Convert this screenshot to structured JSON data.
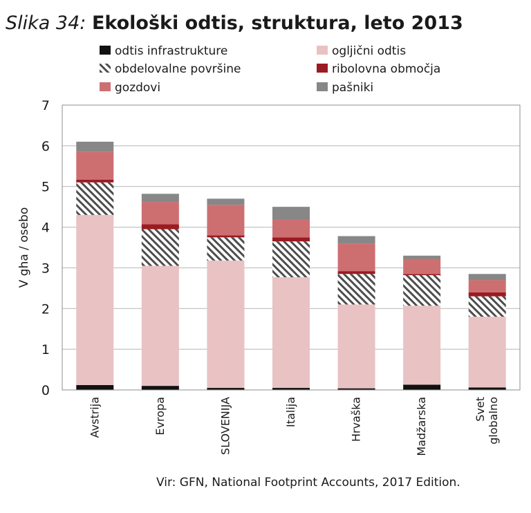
{
  "title_label": "Slika 34:",
  "title_text": "Ekološki odtis, struktura, leto 2013",
  "source": "Vir: GFN, National Footprint Accounts, 2017 Edition.",
  "colors": {
    "odtis_infrastrukture": "#111111",
    "ogljicni_odtis": "#e9c2c3",
    "obdelovalne_povrsine": "#4d4d4d",
    "ribolovna_obmocja": "#9b1b22",
    "gozdovi": "#cd6f71",
    "pasniki": "#878787"
  },
  "chart_data": {
    "type": "bar",
    "stacked": true,
    "title": "Ekološki odtis, struktura, leto 2013",
    "ylabel": "V gha / osebo",
    "xlabel": "",
    "ylim": [
      0,
      7
    ],
    "yticks": [
      0,
      1,
      2,
      3,
      4,
      5,
      6,
      7
    ],
    "grid": true,
    "categories": [
      [
        "Avstrija"
      ],
      [
        "Evropa"
      ],
      [
        "SLOVENIJA"
      ],
      [
        "Italija"
      ],
      [
        "Hrvaška"
      ],
      [
        "Madžarska"
      ],
      [
        "Svet",
        "globalno"
      ]
    ],
    "series": [
      {
        "key": "odtis_infrastrukture",
        "name": "odtis infrastrukture",
        "pattern": "solid",
        "values": [
          0.12,
          0.1,
          0.05,
          0.05,
          0.04,
          0.13,
          0.06
        ]
      },
      {
        "key": "ogljicni_odtis",
        "name": "ogljični odtis",
        "pattern": "solid",
        "values": [
          4.18,
          2.95,
          3.13,
          2.72,
          2.06,
          1.94,
          1.74
        ]
      },
      {
        "key": "obdelovalne_povrsine",
        "name": "obdelovalne površine",
        "pattern": "hatch",
        "values": [
          0.8,
          0.9,
          0.57,
          0.88,
          0.75,
          0.75,
          0.5
        ]
      },
      {
        "key": "ribolovna_obmocja",
        "name": "ribolovna območja",
        "pattern": "solid",
        "values": [
          0.07,
          0.12,
          0.05,
          0.1,
          0.07,
          0.03,
          0.1
        ]
      },
      {
        "key": "gozdovi",
        "name": "gozdovi",
        "pattern": "solid",
        "values": [
          0.68,
          0.55,
          0.75,
          0.43,
          0.68,
          0.37,
          0.3
        ]
      },
      {
        "key": "pasniki",
        "name": "pašniki",
        "pattern": "solid",
        "values": [
          0.25,
          0.2,
          0.15,
          0.32,
          0.18,
          0.08,
          0.15
        ]
      }
    ],
    "legend": {
      "placement": "top",
      "columns": [
        [
          "odtis_infrastrukture",
          "obdelovalne_povrsine",
          "gozdovi"
        ],
        [
          "ogljicni_odtis",
          "ribolovna_obmocja",
          "pasniki"
        ]
      ]
    }
  }
}
